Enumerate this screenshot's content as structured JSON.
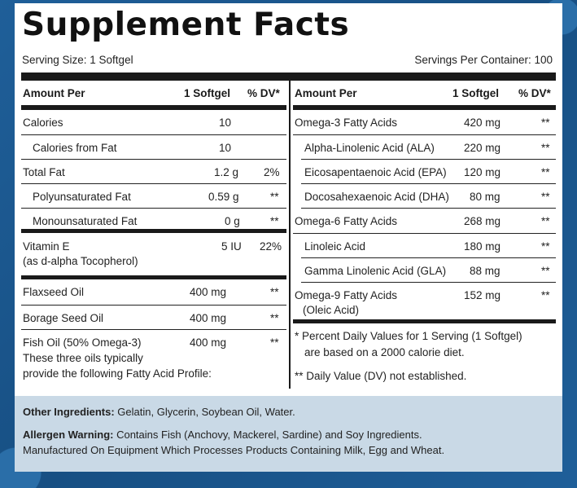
{
  "title": "Supplement Facts",
  "serving_size": "Serving Size: 1 Softgel",
  "servings_per_container": "Servings Per Container: 100",
  "left_header": {
    "amount": "Amount Per",
    "serving": "1 Softgel",
    "dv": "% DV*"
  },
  "right_header": {
    "amount": "Amount Per",
    "serving": "1 Softgel",
    "dv": "% DV*"
  },
  "left_rows": [
    {
      "label": "Calories",
      "amount": "10",
      "dv": ""
    },
    {
      "label": "Calories from Fat",
      "amount": "10",
      "dv": ""
    },
    {
      "label": "Total Fat",
      "amount": "1.2 g",
      "dv": "2%"
    },
    {
      "label": "Polyunsaturated Fat",
      "amount": "0.59 g",
      "dv": "**"
    },
    {
      "label": "Monounsaturated Fat",
      "amount": "0 g",
      "dv": "**"
    },
    {
      "label": "Vitamin E",
      "label2": "(as d-alpha Tocopherol)",
      "amount": "5 IU",
      "dv": "22%"
    },
    {
      "label": "Flaxseed Oil",
      "amount": "400 mg",
      "dv": "**"
    },
    {
      "label": "Borage Seed Oil",
      "amount": "400 mg",
      "dv": "**"
    },
    {
      "label": "Fish Oil (50% Omega-3)",
      "label2": "These three oils typically",
      "label3": "provide the following Fatty Acid Profile:",
      "amount": "400 mg",
      "dv": "**"
    }
  ],
  "right_rows": [
    {
      "label": "Omega-3 Fatty Acids",
      "amount": "420 mg",
      "dv": "**"
    },
    {
      "label": "Alpha-Linolenic Acid (ALA)",
      "amount": "220 mg",
      "dv": "**"
    },
    {
      "label": "Eicosapentaenoic Acid (EPA)",
      "amount": "120 mg",
      "dv": "**"
    },
    {
      "label": "Docosahexaenoic Acid (DHA)",
      "amount": "80 mg",
      "dv": "**"
    },
    {
      "label": "Omega-6 Fatty Acids",
      "amount": "268 mg",
      "dv": "**"
    },
    {
      "label": "Linoleic Acid",
      "amount": "180 mg",
      "dv": "**"
    },
    {
      "label": "Gamma Linolenic Acid (GLA)",
      "amount": "88 mg",
      "dv": "**"
    },
    {
      "label": "Omega-9 Fatty Acids",
      "label2": "(Oleic Acid)",
      "amount": "152 mg",
      "dv": "**"
    }
  ],
  "notes": {
    "percent_line1": "* Percent Daily Values for 1 Serving (1 Softgel)",
    "percent_line2": "are based on a 2000 calorie diet.",
    "dv_note": "** Daily Value (DV) not established."
  },
  "footer": {
    "other_label": "Other Ingredients:",
    "other_text": " Gelatin, Glycerin, Soybean Oil, Water.",
    "allergen_label": "Allergen Warning:",
    "allergen_text": " Contains Fish (Anchovy, Mackerel, Sardine) and Soy Ingredients.",
    "manufactured_text": "Manufactured On Equipment Which Processes Products Containing Milk, Egg and Wheat."
  },
  "colors": {
    "background": "#1d5b93",
    "footer": "#c9d9e6",
    "ink": "#1a1a1a"
  }
}
